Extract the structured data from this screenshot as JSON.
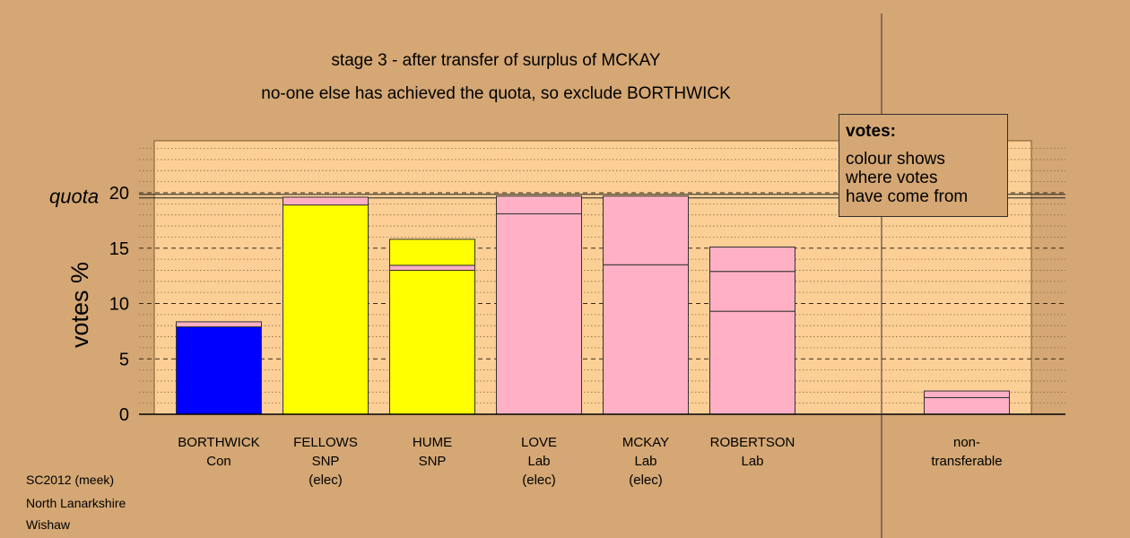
{
  "footer": [
    "SC2012 (meek)",
    "North Lanarkshire",
    "Wishaw"
  ],
  "legend": {
    "title": "votes:",
    "lines": [
      "colour shows",
      "where votes",
      "have come from"
    ]
  },
  "colors": {
    "background": "#d4a774",
    "plot_area": "#fccf96",
    "Con": "#0000ff",
    "SNP": "#ffff00",
    "Lab": "#ffb0c4"
  },
  "chart_data": {
    "type": "bar",
    "stacked": true,
    "title": "stage 3 - after transfer of surplus of MCKAY",
    "subtitle": "no-one else has achieved the quota, so exclude BORTHWICK",
    "ylabel": "votes %",
    "ylim": [
      0,
      25
    ],
    "yticks": [
      0,
      5,
      10,
      15,
      20
    ],
    "grid": true,
    "quota": {
      "label": "quota",
      "value": 19.7
    },
    "categories": [
      {
        "lines": [
          "BORTHWICK",
          "Con"
        ],
        "segments": [
          {
            "value": 7.9,
            "color": "#0000ff"
          },
          {
            "value": 0.45,
            "color": "#ffb0c4"
          }
        ]
      },
      {
        "lines": [
          "FELLOWS",
          "SNP",
          "(elec)"
        ],
        "segments": [
          {
            "value": 18.9,
            "color": "#ffff00"
          },
          {
            "value": 0.7,
            "color": "#ffb0c4"
          }
        ]
      },
      {
        "lines": [
          "HUME",
          "SNP"
        ],
        "segments": [
          {
            "value": 13.0,
            "color": "#ffff00"
          },
          {
            "value": 0.45,
            "color": "#ffb0c4"
          },
          {
            "value": 2.35,
            "color": "#ffff00"
          }
        ]
      },
      {
        "lines": [
          "LOVE",
          "Lab",
          "(elec)"
        ],
        "segments": [
          {
            "value": 18.1,
            "color": "#ffb0c4"
          },
          {
            "value": 1.6,
            "color": "#ffb0c4"
          }
        ]
      },
      {
        "lines": [
          "MCKAY",
          "Lab",
          "(elec)"
        ],
        "segments": [
          {
            "value": 13.5,
            "color": "#ffb0c4"
          },
          {
            "value": 6.2,
            "color": "#ffb0c4"
          }
        ]
      },
      {
        "lines": [
          "ROBERTSON",
          "Lab"
        ],
        "segments": [
          {
            "value": 9.3,
            "color": "#ffb0c4"
          },
          {
            "value": 3.6,
            "color": "#ffb0c4"
          },
          {
            "value": 2.2,
            "color": "#ffb0c4"
          }
        ]
      },
      {
        "lines": [
          "non-",
          "transferable"
        ],
        "segments": [
          {
            "value": 1.5,
            "color": "#ffb0c4"
          },
          {
            "value": 0.6,
            "color": "#ffb0c4"
          }
        ]
      }
    ]
  }
}
